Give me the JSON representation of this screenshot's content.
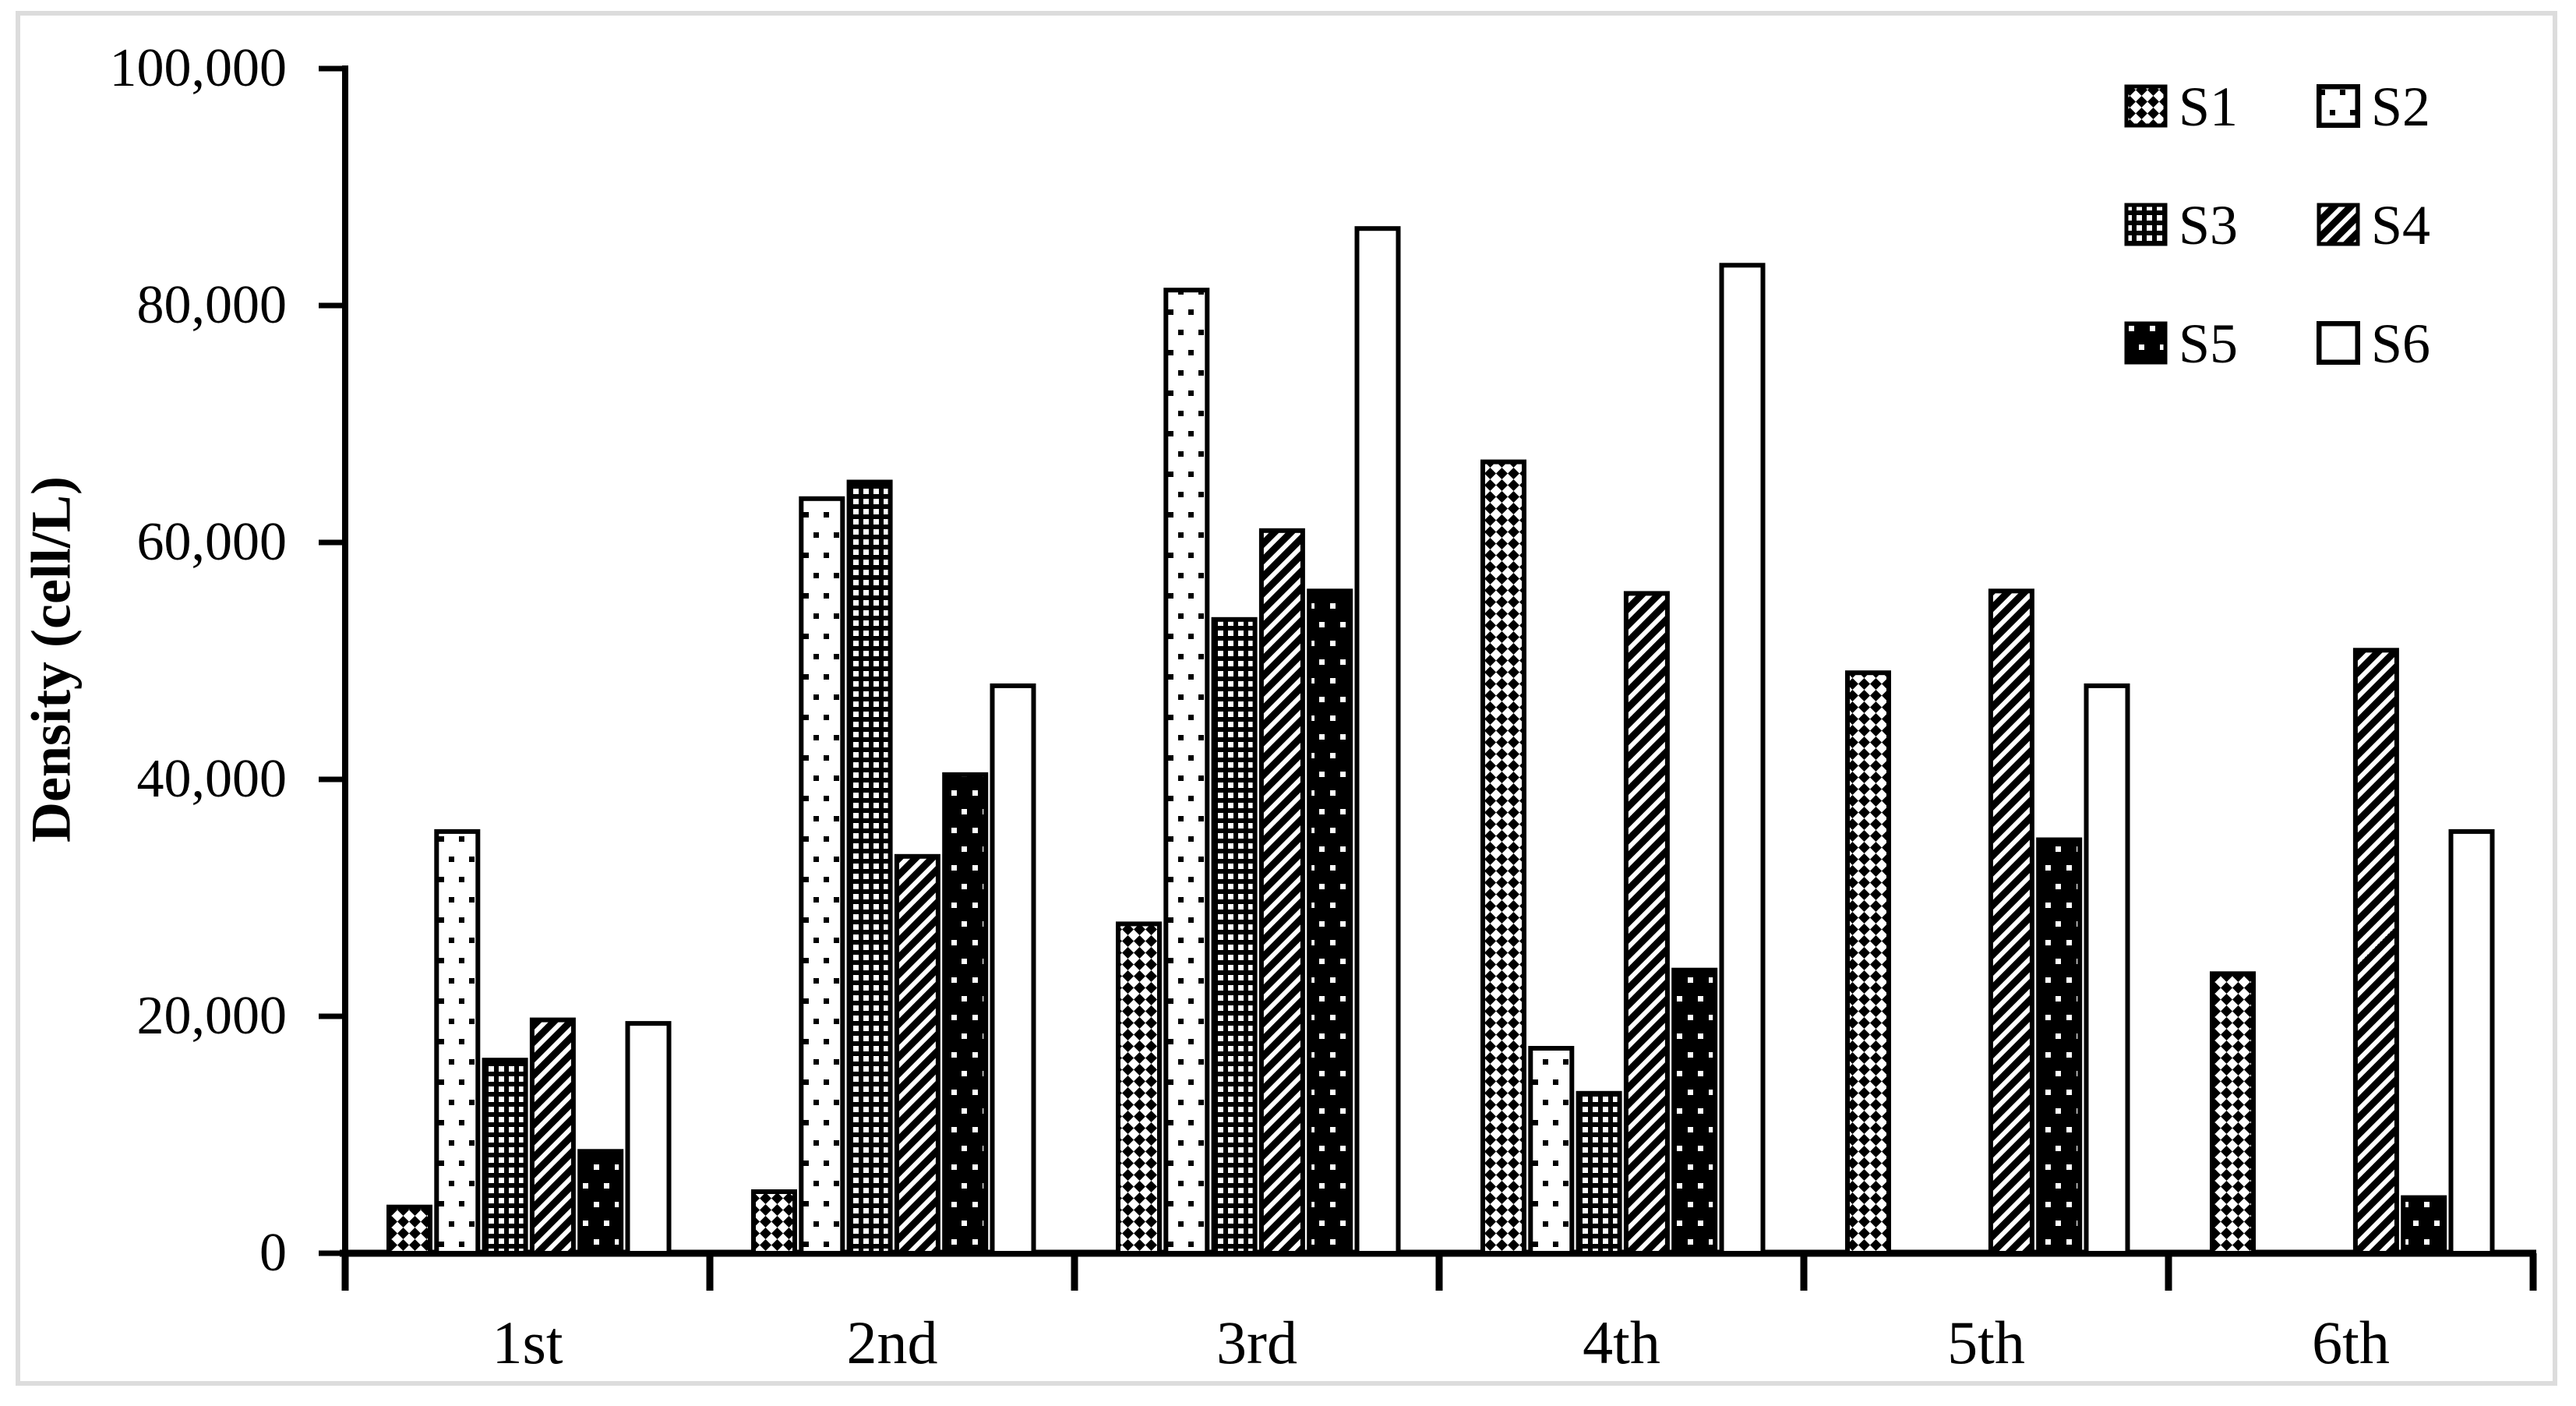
{
  "colors": {
    "foreground": "#000000",
    "background": "#ffffff",
    "frame_border": "#dcdcdc"
  },
  "chart_data": {
    "type": "bar",
    "title": "",
    "xlabel": "",
    "ylabel": "Density (cell/L)",
    "categories": [
      "1st",
      "2nd",
      "3rd",
      "4th",
      "5th",
      "6th"
    ],
    "series": [
      {
        "name": "S1",
        "pattern": "diagonal-checker",
        "values": [
          3900,
          5200,
          27800,
          66800,
          49000,
          23600
        ]
      },
      {
        "name": "S2",
        "pattern": "sparse-dots",
        "values": [
          35600,
          63700,
          81300,
          17300,
          0,
          0
        ]
      },
      {
        "name": "S3",
        "pattern": "black-white-grid",
        "values": [
          16300,
          65100,
          53500,
          13500,
          0,
          0
        ]
      },
      {
        "name": "S4",
        "pattern": "diagonal-stripes",
        "values": [
          19700,
          33500,
          61000,
          55700,
          55900,
          50900
        ]
      },
      {
        "name": "S5",
        "pattern": "black-with-dots",
        "values": [
          8600,
          40400,
          55900,
          23900,
          34900,
          4700
        ]
      },
      {
        "name": "S6",
        "pattern": "plain-white",
        "values": [
          19400,
          47900,
          86500,
          83400,
          47900,
          35600
        ]
      }
    ],
    "ylim": [
      0,
      100000
    ],
    "y_tick_interval": 20000,
    "y_tick_labels": [
      "100,000",
      "80,000",
      "60,000",
      "40,000",
      "20,000",
      "0"
    ],
    "legend_position": "top-right",
    "legend_columns": 2,
    "grid": false
  }
}
